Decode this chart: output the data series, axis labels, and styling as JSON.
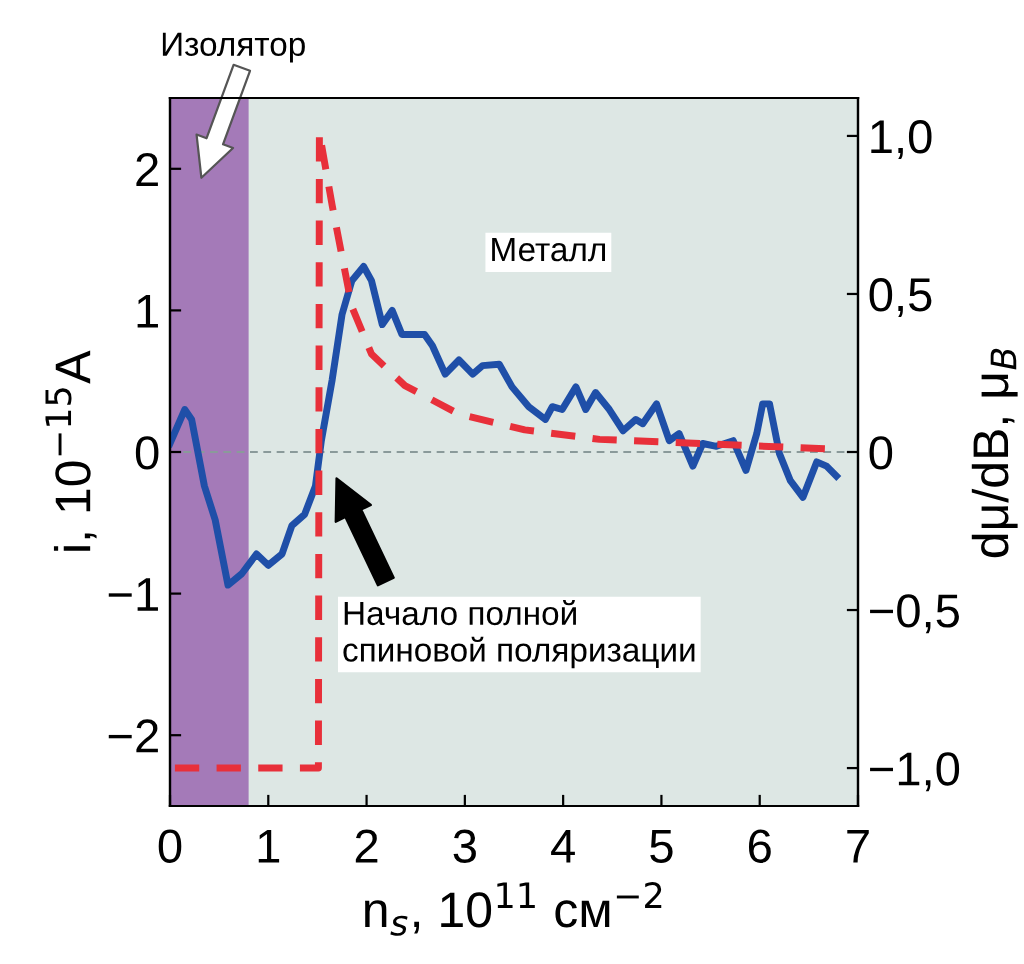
{
  "chart_data": {
    "type": "line",
    "xlabel": "n$_{s}$, 10$^{11}$ см$^{−2}$",
    "ylabel": "i, 10$^{−15}$A",
    "y2label": "dμ/dB, μ$_{B}$",
    "xlim": [
      0,
      7
    ],
    "xticks": [
      0,
      1,
      2,
      3,
      4,
      5,
      6,
      7
    ],
    "ylim": [
      -2.5,
      2.5
    ],
    "yticks": [
      {
        "value": -2,
        "label": "−2"
      },
      {
        "value": -1,
        "label": "−1"
      },
      0,
      1,
      2
    ],
    "y2lim": [
      -1.12,
      1.12
    ],
    "y2ticks": [
      {
        "value": -1,
        "label": "−1,0"
      },
      {
        "value": -0.5,
        "label": "−0,5"
      },
      0,
      {
        "value": 0.5,
        "label": "0,5"
      },
      {
        "value": 1,
        "label": "1,0"
      }
    ],
    "grid": false,
    "legend": false,
    "series": [
      {
        "color": "#1f4fa8",
        "line_style": "solid",
        "x": [
          0,
          0.15,
          0.22,
          0.35,
          0.46,
          0.59,
          0.73,
          0.88,
          1.0,
          1.14,
          1.24,
          1.37,
          1.48,
          1.54,
          1.65,
          1.75,
          1.85,
          1.97,
          2.05,
          2.16,
          2.26,
          2.36,
          2.5,
          2.59,
          2.67,
          2.8,
          2.94,
          3.08,
          3.18,
          3.35,
          3.48,
          3.65,
          3.82,
          3.89,
          3.99,
          4.13,
          4.23,
          4.33,
          4.47,
          4.61,
          4.74,
          4.81,
          4.95,
          5.08,
          5.18,
          5.32,
          5.42,
          5.56,
          5.73,
          5.86,
          5.97,
          6.03,
          6.1,
          6.2,
          6.31,
          6.44,
          6.58,
          6.68,
          6.78
        ],
        "values": [
          0.06,
          0.3,
          0.23,
          -0.24,
          -0.48,
          -0.94,
          -0.86,
          -0.72,
          -0.8,
          -0.72,
          -0.52,
          -0.44,
          -0.24,
          0.08,
          0.51,
          0.97,
          1.21,
          1.31,
          1.21,
          0.9,
          1.0,
          0.83,
          0.83,
          0.83,
          0.75,
          0.55,
          0.65,
          0.55,
          0.61,
          0.62,
          0.46,
          0.32,
          0.23,
          0.32,
          0.3,
          0.46,
          0.3,
          0.42,
          0.3,
          0.15,
          0.23,
          0.2,
          0.34,
          0.08,
          0.13,
          -0.1,
          0.06,
          0.04,
          0.08,
          -0.13,
          0.13,
          0.34,
          0.34,
          -0.01,
          -0.2,
          -0.32,
          -0.07,
          -0.1,
          -0.17
        ]
      },
      {
        "color": "#e8303a",
        "line_style": "dashed",
        "axis": "y2",
        "x": [
          0.05,
          1.51,
          1.52,
          1.65,
          1.85,
          2.05,
          2.39,
          2.94,
          3.61,
          4.37,
          6.67
        ],
        "values": [
          -1.0,
          -1.0,
          1.01,
          0.78,
          0.46,
          0.31,
          0.21,
          0.12,
          0.07,
          0.04,
          0.01
        ]
      }
    ],
    "bands": [
      {
        "axis": "x",
        "from": 0,
        "to": 0.8,
        "color": "#a47ab8"
      }
    ],
    "ref_lines": [
      {
        "axis": "y",
        "value": 0,
        "color": "#8a9a9a",
        "line_style": "dashed"
      }
    ],
    "annotations": [
      "Изолятор",
      "Металл",
      "Начало полной\nспиновой поляризации"
    ]
  }
}
